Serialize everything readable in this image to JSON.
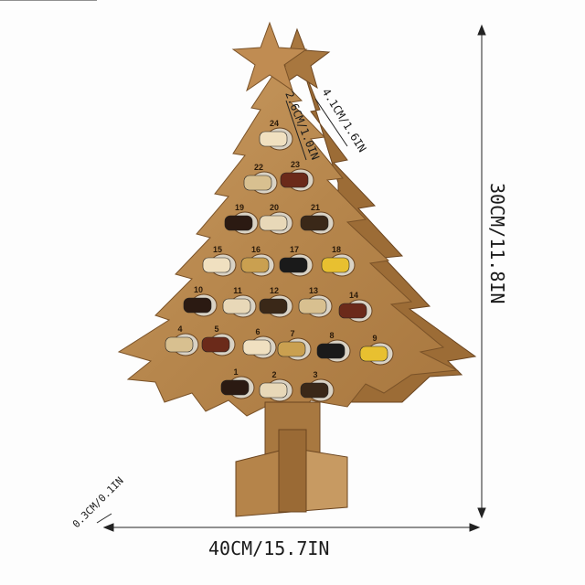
{
  "product": {
    "slot_numbers": [
      "1",
      "2",
      "3",
      "4",
      "5",
      "6",
      "7",
      "8",
      "9",
      "10",
      "11",
      "12",
      "13",
      "14",
      "15",
      "16",
      "17",
      "18",
      "19",
      "20",
      "21",
      "22",
      "23",
      "24"
    ],
    "wood_color": "#b98a50",
    "wood_dark": "#8a5e2c"
  },
  "dimensions": {
    "height": "30CM/11.8IN",
    "width": "40CM/15.7IN",
    "thickness": "0.3CM/0.1IN",
    "hole_diameter": "2.6CM/1.0IN",
    "hole_spacing": "4.1CM/1.6IN"
  }
}
